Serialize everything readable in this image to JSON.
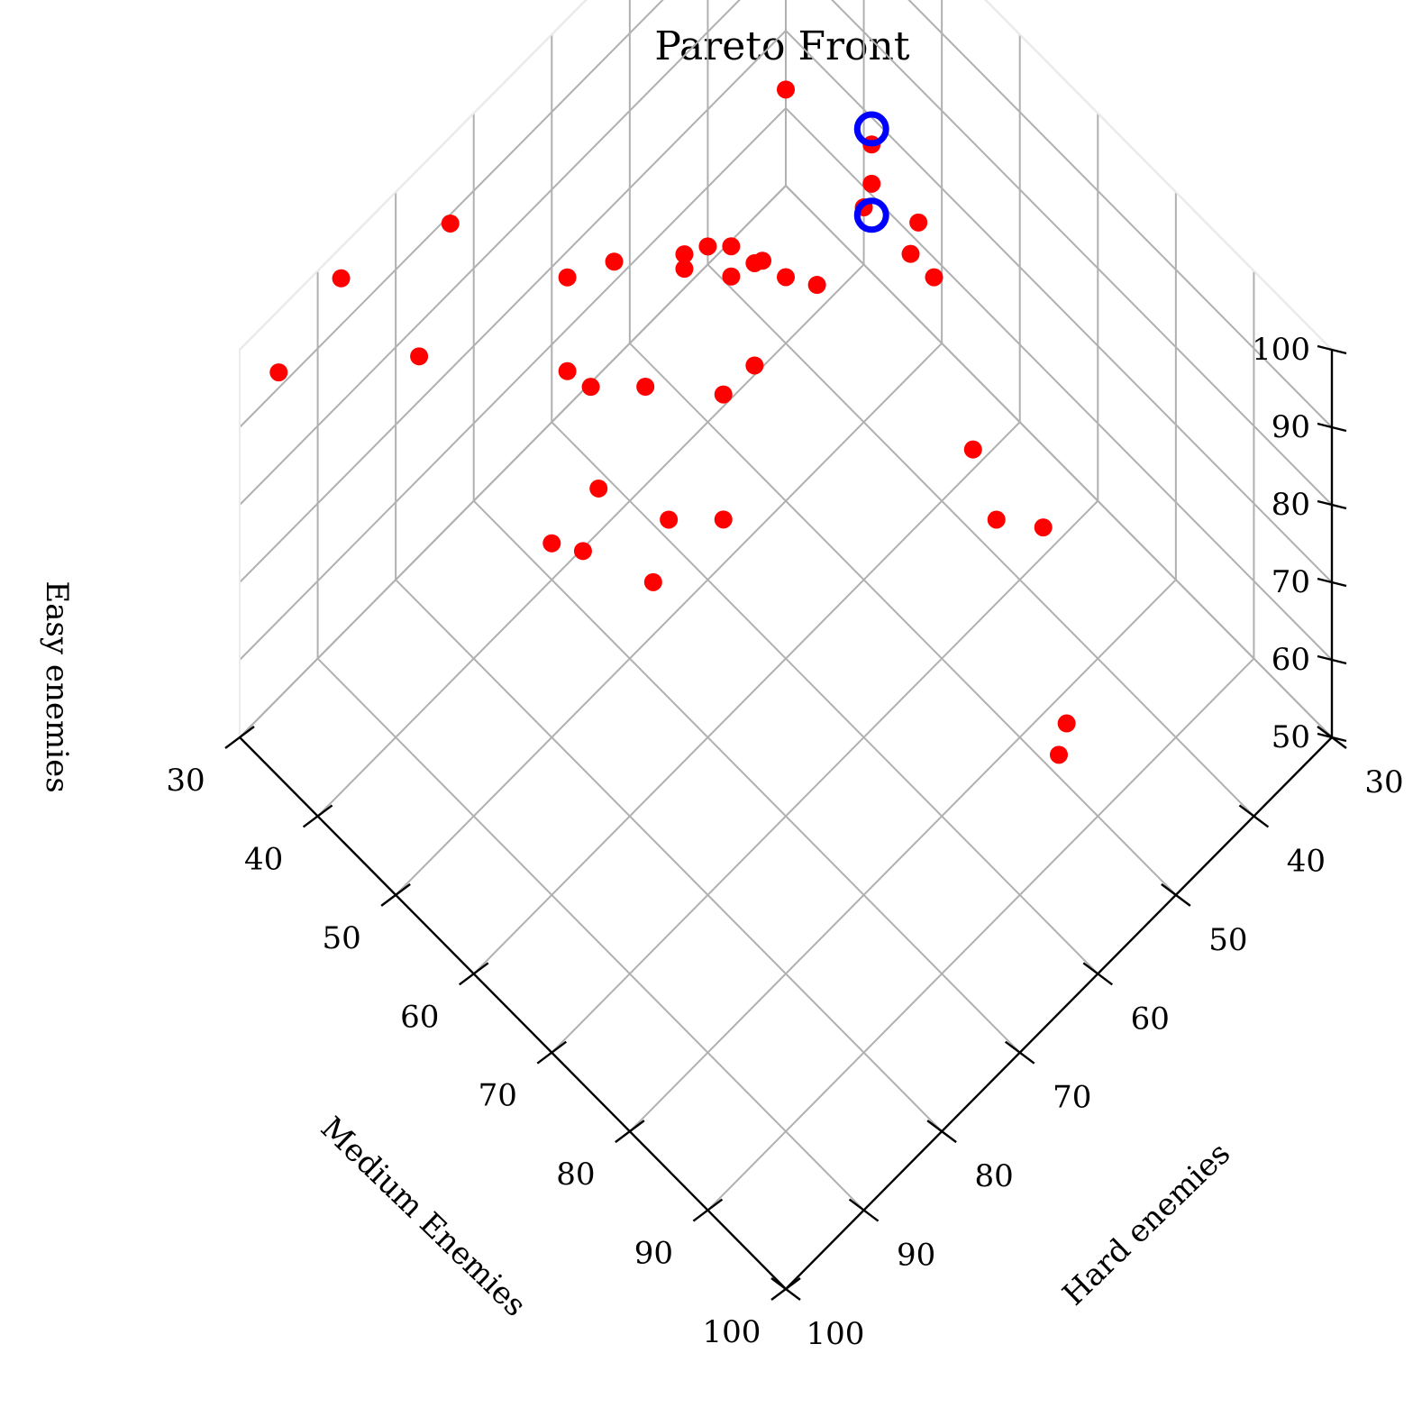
{
  "chart_data": {
    "type": "scatter3d",
    "title": "Pareto Front",
    "xlabel": "Hard enemies",
    "ylabel": "Medium Enemies",
    "zlabel": "Easy enemies",
    "xlim": [
      30,
      100
    ],
    "ylim": [
      30,
      100
    ],
    "zlim": [
      50,
      100
    ],
    "xticks": [
      "30",
      "40",
      "50",
      "60",
      "70",
      "80",
      "90",
      "100"
    ],
    "yticks": [
      "30",
      "40",
      "50",
      "60",
      "70",
      "80",
      "90",
      "100"
    ],
    "zticks": [
      "50",
      "60",
      "70",
      "80",
      "90",
      "100"
    ],
    "grid": true,
    "series": [
      {
        "color": "#ff0000",
        "marker": "circle",
        "points": [
          [
            48,
            48,
            99
          ],
          [
            62,
            58,
            101
          ],
          [
            68,
            64,
            100
          ],
          [
            45,
            56,
            97
          ],
          [
            47,
            58,
            96
          ],
          [
            49,
            59,
            96
          ],
          [
            44,
            61,
            91
          ],
          [
            46,
            62,
            90
          ],
          [
            45,
            64,
            88
          ],
          [
            52,
            56,
            86
          ],
          [
            54,
            54,
            87
          ],
          [
            58,
            51,
            92
          ],
          [
            60,
            50,
            93
          ],
          [
            62,
            49,
            93
          ],
          [
            49,
            73,
            79
          ],
          [
            52,
            49,
            82
          ],
          [
            55,
            48,
            82
          ],
          [
            58,
            45,
            83
          ],
          [
            65,
            43,
            89
          ],
          [
            69,
            41,
            89
          ],
          [
            62,
            54,
            80
          ],
          [
            67,
            49,
            81
          ],
          [
            71,
            46,
            82
          ],
          [
            72,
            44,
            83
          ],
          [
            66,
            58,
            72
          ],
          [
            70,
            55,
            73
          ],
          [
            74,
            50,
            76
          ],
          [
            73,
            56,
            69
          ],
          [
            77,
            51,
            72
          ],
          [
            79,
            49,
            73
          ],
          [
            46,
            79,
            72
          ],
          [
            49,
            76,
            73
          ],
          [
            53,
            89,
            64
          ],
          [
            55,
            90,
            63
          ],
          [
            78,
            35,
            99
          ],
          [
            87,
            30,
            96
          ],
          [
            95,
            30,
            92
          ],
          [
            84,
            37,
            90
          ]
        ]
      },
      {
        "color": "#0000ff",
        "marker": "ring",
        "points": [
          [
            45,
            56,
            99
          ],
          [
            49,
            60,
            96
          ]
        ]
      }
    ]
  }
}
